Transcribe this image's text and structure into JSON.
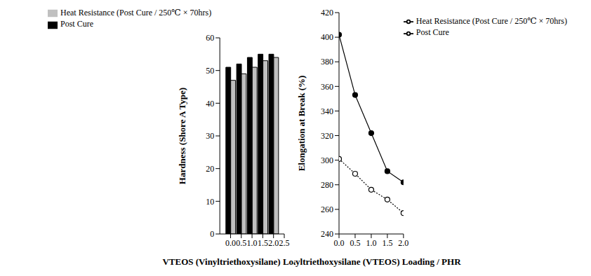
{
  "chart_data": [
    {
      "type": "bar",
      "x_label": "VTEOS (Vinyltriethoxysilane) Loading / PHR",
      "y_label": "Hardness (Shore A Type)",
      "x": [
        0,
        0.5,
        1,
        1.5,
        2
      ],
      "series": [
        {
          "name": "Post Cure",
          "color": "#000000",
          "values": [
            51,
            52,
            54,
            55,
            55
          ]
        },
        {
          "name": "Heat Resistance (Post Cure / 250℃ × 70hrs)",
          "color": "#c0c0c0",
          "values": [
            47,
            49,
            51,
            53,
            54
          ]
        }
      ],
      "xlim": [
        -0.5,
        2.5
      ],
      "xticks": [
        {
          "value": 0,
          "label": "0.0"
        },
        0.5,
        {
          "value": 1,
          "label": "1.0"
        },
        1.5,
        {
          "value": 2,
          "label": "2.0"
        },
        2.5
      ],
      "ylim": [
        0,
        60
      ],
      "yticks": [
        0,
        10,
        20,
        30,
        40,
        50,
        60
      ],
      "grid": false,
      "legend": "top"
    },
    {
      "type": "line",
      "x_label": "Vinyltriethoxysilane (VTEOS) Loading / PHR",
      "y_label": "Elongation at Break (%)",
      "x": [
        0,
        0.5,
        1,
        1.5,
        2
      ],
      "series": [
        {
          "name": "Post Cure",
          "color": "#000000",
          "marker": "filled_circle",
          "line_style": "solid",
          "values": [
            402,
            353,
            322,
            291,
            282
          ]
        },
        {
          "name": "Heat Resistance (Post Cure / 250℃ × 70hrs)",
          "color": "#000000",
          "marker": "open_circle",
          "line_style": "dotted",
          "values": [
            301,
            289,
            276,
            268,
            257
          ]
        }
      ],
      "xlim": [
        0,
        2
      ],
      "xticks": [
        {
          "value": 0,
          "label": "0.0"
        },
        0.5,
        {
          "value": 1,
          "label": "1.0"
        },
        1.5,
        {
          "value": 2,
          "label": "2.0"
        }
      ],
      "ylim": [
        240,
        420
      ],
      "yticks": [
        240,
        260,
        280,
        300,
        320,
        340,
        360,
        380,
        400,
        420
      ],
      "grid": false,
      "legend": "upper right"
    }
  ]
}
